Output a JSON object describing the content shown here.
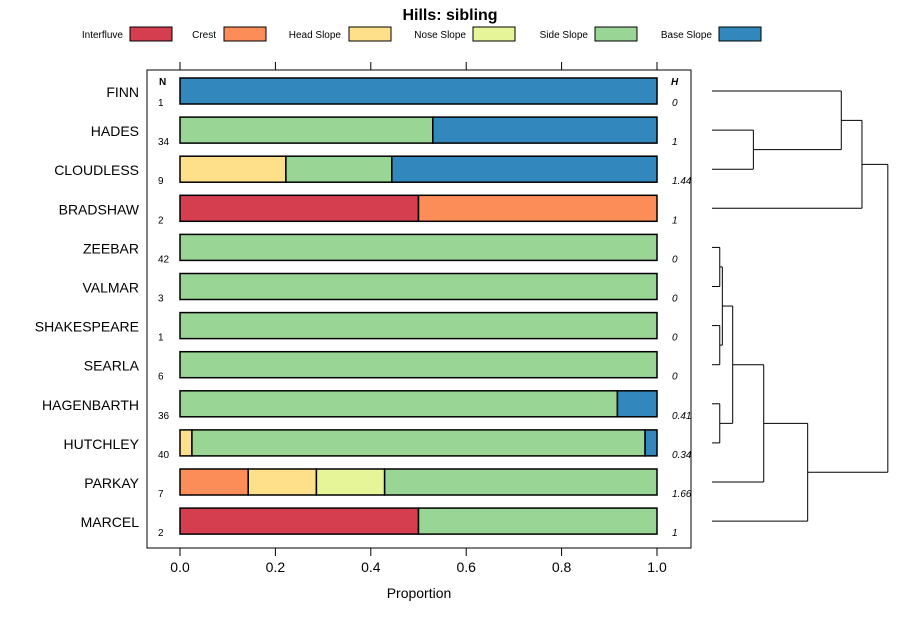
{
  "chart_data": {
    "type": "bar",
    "orientation": "horizontal",
    "stacked": true,
    "title": "Hills: sibling",
    "xlabel": "Proportion",
    "xlim": [
      -0.05,
      1.07
    ],
    "xticks": [
      0.0,
      0.2,
      0.4,
      0.6,
      0.8,
      1.0
    ],
    "xtick_labels": [
      "0.0",
      "0.2",
      "0.4",
      "0.6",
      "0.8",
      "1.0"
    ],
    "n_header": "N",
    "h_header": "H",
    "legend": [
      {
        "label": "Interfluve",
        "color": "#D53E4F"
      },
      {
        "label": "Crest",
        "color": "#FC8D59"
      },
      {
        "label": "Head Slope",
        "color": "#FEE08B"
      },
      {
        "label": "Nose Slope",
        "color": "#E6F598"
      },
      {
        "label": "Side Slope",
        "color": "#99D594"
      },
      {
        "label": "Base Slope",
        "color": "#3288BD"
      }
    ],
    "rows": [
      {
        "name": "FINN",
        "n": "1",
        "h": "0",
        "values": [
          0,
          0,
          0,
          0,
          0,
          1.0
        ]
      },
      {
        "name": "HADES",
        "n": "34",
        "h": "1",
        "values": [
          0,
          0,
          0,
          0,
          0.53,
          0.47
        ]
      },
      {
        "name": "CLOUDLESS",
        "n": "9",
        "h": "1.44",
        "values": [
          0,
          0,
          0.222,
          0,
          0.222,
          0.556
        ]
      },
      {
        "name": "BRADSHAW",
        "n": "2",
        "h": "1",
        "values": [
          0.5,
          0.5,
          0,
          0,
          0,
          0
        ]
      },
      {
        "name": "ZEEBAR",
        "n": "42",
        "h": "0",
        "values": [
          0,
          0,
          0,
          0,
          1.0,
          0
        ]
      },
      {
        "name": "VALMAR",
        "n": "3",
        "h": "0",
        "values": [
          0,
          0,
          0,
          0,
          1.0,
          0
        ]
      },
      {
        "name": "SHAKESPEARE",
        "n": "1",
        "h": "0",
        "values": [
          0,
          0,
          0,
          0,
          1.0,
          0
        ]
      },
      {
        "name": "SEARLA",
        "n": "6",
        "h": "0",
        "values": [
          0,
          0,
          0,
          0,
          1.0,
          0
        ]
      },
      {
        "name": "HAGENBARTH",
        "n": "36",
        "h": "0.41",
        "values": [
          0,
          0,
          0,
          0,
          0.917,
          0.083
        ]
      },
      {
        "name": "HUTCHLEY",
        "n": "40",
        "h": "0.34",
        "values": [
          0,
          0,
          0.025,
          0,
          0.95,
          0.025
        ]
      },
      {
        "name": "PARKAY",
        "n": "7",
        "h": "1.66",
        "values": [
          0,
          0.143,
          0.143,
          0.143,
          0.571,
          0
        ]
      },
      {
        "name": "MARCEL",
        "n": "2",
        "h": "1",
        "values": [
          0.5,
          0,
          0,
          0,
          0.5,
          0
        ]
      }
    ],
    "dendrogram": {
      "leaf_order": [
        "FINN",
        "HADES",
        "CLOUDLESS",
        "BRADSHAW",
        "ZEEBAR",
        "VALMAR",
        "SHAKESPEARE",
        "SEARLA",
        "HAGENBARTH",
        "HUTCHLEY",
        "PARKAY",
        "MARCEL"
      ],
      "merges": [
        {
          "left": "HADES",
          "right": "CLOUDLESS",
          "height": 0.16
        },
        {
          "left": "FINN",
          "right": [
            "HADES",
            "CLOUDLESS"
          ],
          "height": 0.5
        },
        {
          "left": [
            "FINN",
            "HADES",
            "CLOUDLESS"
          ],
          "right": "BRADSHAW",
          "height": 0.58
        },
        {
          "left": "ZEEBAR",
          "right": "VALMAR",
          "height": 0.03
        },
        {
          "left": "SHAKESPEARE",
          "right": "SEARLA",
          "height": 0.03
        },
        {
          "left": "HAGENBARTH",
          "right": "HUTCHLEY",
          "height": 0.03
        },
        {
          "left": [
            "ZEEBAR",
            "VALMAR"
          ],
          "right": [
            "SHAKESPEARE",
            "SEARLA"
          ],
          "height": 0.04
        },
        {
          "left": [
            "ZEEBAR",
            "VALMAR",
            "SHAKESPEARE",
            "SEARLA"
          ],
          "right": [
            "HAGENBARTH",
            "HUTCHLEY"
          ],
          "height": 0.08
        },
        {
          "left": [
            "ZEEBAR",
            "VALMAR",
            "SHAKESPEARE",
            "SEARLA",
            "HAGENBARTH",
            "HUTCHLEY"
          ],
          "right": "PARKAY",
          "height": 0.2
        },
        {
          "left": [
            "ZEEBAR",
            "VALMAR",
            "SHAKESPEARE",
            "SEARLA",
            "HAGENBARTH",
            "HUTCHLEY",
            "PARKAY"
          ],
          "right": "MARCEL",
          "height": 0.37
        },
        {
          "left": [
            "FINN",
            "HADES",
            "CLOUDLESS",
            "BRADSHAW"
          ],
          "right": [
            "ZEEBAR",
            "VALMAR",
            "SHAKESPEARE",
            "SEARLA",
            "HAGENBARTH",
            "HUTCHLEY",
            "PARKAY",
            "MARCEL"
          ],
          "height": 0.68
        }
      ],
      "max_height": 0.7
    }
  }
}
